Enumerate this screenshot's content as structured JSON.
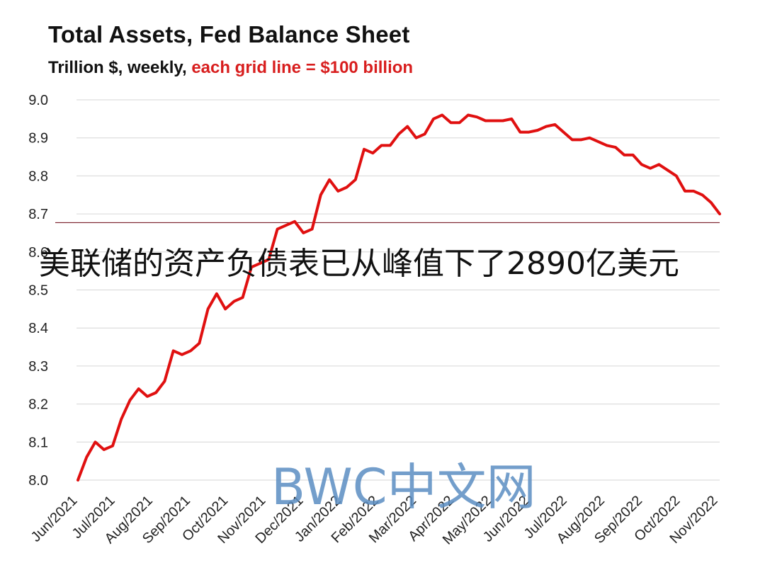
{
  "chart_data": {
    "type": "line",
    "title": "Total Assets, Fed Balance Sheet",
    "subtitle_prefix": "Trillion $, weekly,",
    "subtitle_accent": "each grid line = $100 billion",
    "xlabel": "",
    "ylabel": "",
    "ylim": [
      8.0,
      9.0
    ],
    "yticks": [
      "9.0",
      "8.9",
      "8.8",
      "8.7",
      "8.6",
      "8.5",
      "8.4",
      "8.3",
      "8.2",
      "8.1",
      "8.0"
    ],
    "x_ticks": [
      "Jun/2021",
      "Jul/2021",
      "Aug/2021",
      "Sep/2021",
      "Oct/2021",
      "Nov/2021",
      "Dec/2021",
      "Jan/2022",
      "Feb/2022",
      "Mar/2022",
      "Apr/2022",
      "May/2022",
      "Jun/2022",
      "Jul/2022",
      "Aug/2022",
      "Sep/2022",
      "Oct/2022",
      "Nov/2022"
    ],
    "grid": true,
    "reference_line": 8.677,
    "series": [
      {
        "color": "#e01010",
        "values": [
          8.0,
          8.06,
          8.1,
          8.08,
          8.09,
          8.16,
          8.21,
          8.24,
          8.22,
          8.23,
          8.26,
          8.34,
          8.33,
          8.34,
          8.36,
          8.45,
          8.49,
          8.45,
          8.47,
          8.48,
          8.56,
          8.57,
          8.58,
          8.66,
          8.67,
          8.68,
          8.65,
          8.66,
          8.75,
          8.79,
          8.76,
          8.77,
          8.79,
          8.87,
          8.86,
          8.88,
          8.88,
          8.91,
          8.93,
          8.9,
          8.91,
          8.95,
          8.96,
          8.94,
          8.94,
          8.96,
          8.955,
          8.945,
          8.945,
          8.945,
          8.95,
          8.915,
          8.915,
          8.92,
          8.93,
          8.935,
          8.915,
          8.895,
          8.895,
          8.9,
          8.89,
          8.88,
          8.875,
          8.855,
          8.855,
          8.83,
          8.82,
          8.83,
          8.815,
          8.8,
          8.76,
          8.76,
          8.75,
          8.73,
          8.7
        ]
      }
    ]
  },
  "overlay": {
    "caption": "美联储的资产负债表已从峰值下了2890亿美元",
    "watermark": "BWC中文网"
  }
}
